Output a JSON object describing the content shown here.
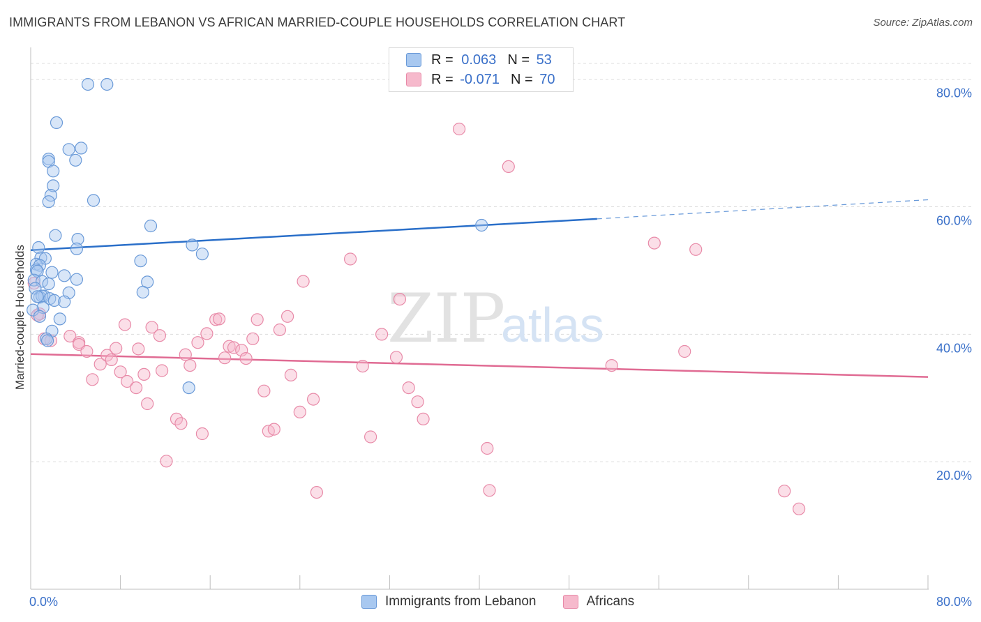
{
  "title": "IMMIGRANTS FROM LEBANON VS AFRICAN MARRIED-COUPLE HOUSEHOLDS CORRELATION CHART",
  "source": "Source: ZipAtlas.com",
  "watermark": {
    "zip": "ZIP",
    "atlas": "atlas"
  },
  "legend_top": {
    "rows": [
      {
        "r_label": "R =",
        "r_value": "0.063",
        "n_label": "N =",
        "n_value": "53"
      },
      {
        "r_label": "R =",
        "r_value": "-0.071",
        "n_label": "N =",
        "n_value": "70"
      }
    ]
  },
  "colors": {
    "blue_fill": "#a8c8f0",
    "blue_stroke": "#6a9ad8",
    "blue_line": "#2a6fc9",
    "pink_fill": "#f6b9cc",
    "pink_stroke": "#e88aa8",
    "pink_line": "#e06b93",
    "grid": "#dcdcdc",
    "tick_label": "#3a70c9"
  },
  "chart_data": {
    "type": "scatter",
    "ylabel": "Married-couple Households",
    "xlim": [
      0,
      80
    ],
    "ylim": [
      0,
      85
    ],
    "x_tick_labels": [
      "0.0%",
      "80.0%"
    ],
    "y_ticks": [
      20,
      40,
      60,
      80
    ],
    "y_tick_labels": [
      "20.0%",
      "40.0%",
      "60.0%",
      "80.0%"
    ],
    "grid": true,
    "legend_position": "top-center",
    "series": [
      {
        "name": "Immigrants from Lebanon",
        "color": "#a8c8f0",
        "trend": {
          "x": [
            0,
            50.5
          ],
          "y": [
            53.2,
            58.1
          ],
          "dashed_to": [
            80,
            61.1
          ]
        },
        "points": [
          [
            5.1,
            79.2
          ],
          [
            6.8,
            79.2
          ],
          [
            2.3,
            73.2
          ],
          [
            3.4,
            69.0
          ],
          [
            4.5,
            69.2
          ],
          [
            1.6,
            67.5
          ],
          [
            1.6,
            67.1
          ],
          [
            4.0,
            67.3
          ],
          [
            2.0,
            65.6
          ],
          [
            2.0,
            63.3
          ],
          [
            1.8,
            61.8
          ],
          [
            1.6,
            60.8
          ],
          [
            5.6,
            61.0
          ],
          [
            10.7,
            57.0
          ],
          [
            40.2,
            57.1
          ],
          [
            2.2,
            55.5
          ],
          [
            4.2,
            54.9
          ],
          [
            14.4,
            54.0
          ],
          [
            0.7,
            53.6
          ],
          [
            4.1,
            53.4
          ],
          [
            15.3,
            52.6
          ],
          [
            0.9,
            52.0
          ],
          [
            1.3,
            51.9
          ],
          [
            9.8,
            51.5
          ],
          [
            0.5,
            51.0
          ],
          [
            0.8,
            50.8
          ],
          [
            0.5,
            50.1
          ],
          [
            0.6,
            49.9
          ],
          [
            1.9,
            49.7
          ],
          [
            3.0,
            49.2
          ],
          [
            0.3,
            48.5
          ],
          [
            1.0,
            48.3
          ],
          [
            4.1,
            48.6
          ],
          [
            1.6,
            47.9
          ],
          [
            10.4,
            48.2
          ],
          [
            0.4,
            47.2
          ],
          [
            3.4,
            46.5
          ],
          [
            10.0,
            46.6
          ],
          [
            1.2,
            46.0
          ],
          [
            0.8,
            45.8
          ],
          [
            1.0,
            46.0
          ],
          [
            1.7,
            45.6
          ],
          [
            0.6,
            45.9
          ],
          [
            2.1,
            45.3
          ],
          [
            3.0,
            45.1
          ],
          [
            1.1,
            44.2
          ],
          [
            2.6,
            42.4
          ],
          [
            1.9,
            40.5
          ],
          [
            1.4,
            39.3
          ],
          [
            14.1,
            31.6
          ],
          [
            0.2,
            43.8
          ],
          [
            0.8,
            42.8
          ],
          [
            1.5,
            39.0
          ]
        ]
      },
      {
        "name": "Africans",
        "color": "#f6b9cc",
        "trend": {
          "x": [
            0,
            80
          ],
          "y": [
            36.9,
            33.3
          ]
        },
        "points": [
          [
            0.8,
            43.2
          ],
          [
            1.2,
            39.3
          ],
          [
            1.8,
            39.0
          ],
          [
            3.5,
            39.7
          ],
          [
            4.3,
            38.7
          ],
          [
            4.3,
            38.4
          ],
          [
            5.0,
            37.3
          ],
          [
            5.5,
            32.9
          ],
          [
            6.2,
            35.3
          ],
          [
            6.8,
            36.7
          ],
          [
            7.2,
            36.0
          ],
          [
            7.6,
            37.8
          ],
          [
            8.0,
            34.1
          ],
          [
            8.6,
            32.6
          ],
          [
            8.4,
            41.5
          ],
          [
            9.4,
            31.6
          ],
          [
            9.6,
            37.7
          ],
          [
            10.1,
            33.7
          ],
          [
            10.4,
            29.1
          ],
          [
            10.8,
            41.1
          ],
          [
            11.5,
            39.8
          ],
          [
            11.7,
            34.3
          ],
          [
            12.1,
            20.1
          ],
          [
            13.0,
            26.7
          ],
          [
            13.4,
            26.0
          ],
          [
            13.8,
            36.8
          ],
          [
            14.2,
            35.1
          ],
          [
            14.9,
            38.7
          ],
          [
            15.3,
            24.4
          ],
          [
            15.7,
            40.1
          ],
          [
            16.5,
            42.3
          ],
          [
            16.8,
            42.4
          ],
          [
            17.3,
            36.3
          ],
          [
            17.7,
            38.1
          ],
          [
            18.1,
            37.9
          ],
          [
            18.8,
            37.5
          ],
          [
            19.2,
            36.2
          ],
          [
            19.8,
            39.3
          ],
          [
            20.2,
            42.3
          ],
          [
            20.8,
            31.1
          ],
          [
            21.2,
            24.8
          ],
          [
            21.7,
            25.1
          ],
          [
            22.2,
            40.7
          ],
          [
            22.9,
            42.8
          ],
          [
            23.2,
            33.6
          ],
          [
            24.0,
            27.8
          ],
          [
            24.3,
            48.3
          ],
          [
            25.2,
            29.8
          ],
          [
            25.5,
            15.2
          ],
          [
            28.5,
            51.8
          ],
          [
            29.6,
            35.0
          ],
          [
            30.3,
            23.9
          ],
          [
            31.3,
            40.0
          ],
          [
            32.6,
            36.4
          ],
          [
            32.9,
            45.5
          ],
          [
            33.7,
            31.6
          ],
          [
            34.5,
            29.4
          ],
          [
            35.0,
            26.7
          ],
          [
            38.2,
            72.2
          ],
          [
            40.7,
            22.1
          ],
          [
            40.9,
            15.5
          ],
          [
            42.6,
            66.3
          ],
          [
            51.8,
            35.1
          ],
          [
            55.6,
            54.3
          ],
          [
            58.3,
            37.3
          ],
          [
            59.3,
            53.3
          ],
          [
            67.2,
            15.4
          ],
          [
            68.5,
            12.6
          ],
          [
            0.3,
            48.0
          ],
          [
            0.6,
            43.0
          ]
        ]
      }
    ]
  }
}
